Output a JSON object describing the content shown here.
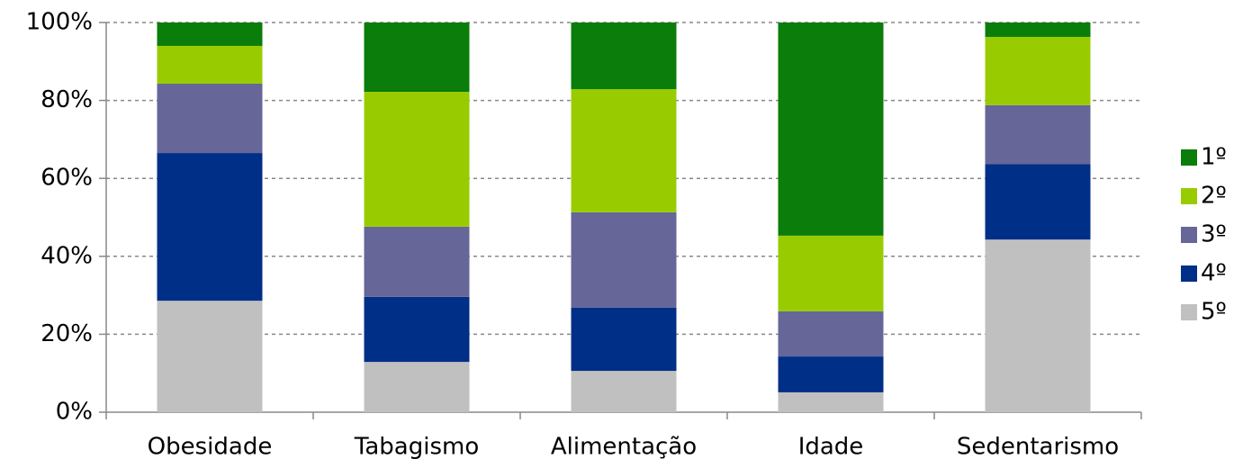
{
  "chart_data": {
    "type": "stacked_bar",
    "categories": [
      "Obesidade",
      "Tabagismo",
      "Alimentação",
      "Idade",
      "Sedentarismo"
    ],
    "series": [
      {
        "name": "1º",
        "color": "#0a7d0a",
        "values": [
          6.0,
          17.8,
          17.1,
          54.7,
          3.7
        ]
      },
      {
        "name": "2º",
        "color": "#99cc00",
        "values": [
          9.7,
          34.6,
          31.6,
          19.4,
          17.5
        ]
      },
      {
        "name": "3º",
        "color": "#666699",
        "values": [
          17.8,
          18.0,
          24.5,
          11.6,
          15.1
        ]
      },
      {
        "name": "4º",
        "color": "#002f87",
        "values": [
          37.9,
          16.7,
          16.2,
          9.2,
          19.4
        ]
      },
      {
        "name": "5º",
        "color": "#c0c0c0",
        "values": [
          28.6,
          12.9,
          10.6,
          5.1,
          44.3
        ]
      }
    ],
    "ylim": [
      0,
      100
    ],
    "yticks": [
      {
        "value": 0,
        "label": "0%"
      },
      {
        "value": 20,
        "label": "20%"
      },
      {
        "value": 40,
        "label": "40%"
      },
      {
        "value": 60,
        "label": "60%"
      },
      {
        "value": 80,
        "label": "80%"
      },
      {
        "value": 100,
        "label": "100%"
      }
    ],
    "grid": true,
    "legend": "right"
  }
}
